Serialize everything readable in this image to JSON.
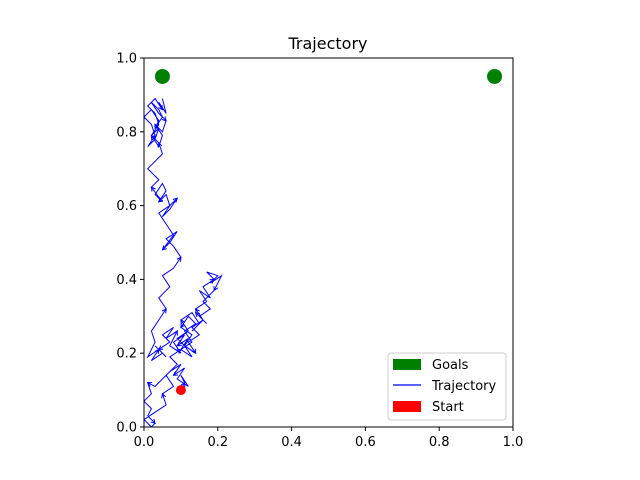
{
  "chart_data": {
    "type": "line",
    "title": "Trajectory",
    "xlabel": "",
    "ylabel": "",
    "xlim": [
      0.0,
      1.0
    ],
    "ylim": [
      0.0,
      1.0
    ],
    "xticks": [
      "0.0",
      "0.2",
      "0.4",
      "0.6",
      "0.8",
      "1.0"
    ],
    "yticks": [
      "0.0",
      "0.2",
      "0.4",
      "0.6",
      "0.8",
      "1.0"
    ],
    "grid": false,
    "legend": {
      "placement": "lower-right",
      "entries": [
        {
          "label": "Goals",
          "color": "#008000",
          "kind": "patch"
        },
        {
          "label": "Trajectory",
          "color": "#0000ff",
          "kind": "line"
        },
        {
          "label": "Start",
          "color": "#ff0000",
          "kind": "patch"
        }
      ]
    },
    "goals": [
      {
        "x": 0.05,
        "y": 0.95
      },
      {
        "x": 0.95,
        "y": 0.95
      }
    ],
    "start": {
      "x": 0.1,
      "y": 0.1
    },
    "series": [
      {
        "name": "Trajectory",
        "color": "#0000ff",
        "x": [
          0.1,
          0.11,
          0.1,
          0.12,
          0.09,
          0.11,
          0.08,
          0.1,
          0.07,
          0.05,
          0.03,
          0.01,
          0.02,
          0.0,
          0.02,
          0.01,
          0.03,
          0.02,
          0.0,
          0.03,
          0.06,
          0.05,
          0.08,
          0.06,
          0.09,
          0.07,
          0.1,
          0.13,
          0.11,
          0.14,
          0.12,
          0.1,
          0.13,
          0.11,
          0.09,
          0.12,
          0.1,
          0.13,
          0.15,
          0.13,
          0.16,
          0.14,
          0.17,
          0.15,
          0.18,
          0.16,
          0.19,
          0.17,
          0.2,
          0.18,
          0.21,
          0.19,
          0.16,
          0.18,
          0.15,
          0.17,
          0.14,
          0.16,
          0.13,
          0.15,
          0.12,
          0.14,
          0.11,
          0.13,
          0.1,
          0.12,
          0.09,
          0.11,
          0.08,
          0.1,
          0.07,
          0.09,
          0.06,
          0.08,
          0.05,
          0.07,
          0.04,
          0.06,
          0.03,
          0.05,
          0.02,
          0.04,
          0.01,
          0.03,
          0.02,
          0.04,
          0.06,
          0.04,
          0.07,
          0.05,
          0.08,
          0.1,
          0.08,
          0.06,
          0.09,
          0.07,
          0.05,
          0.08,
          0.06,
          0.04,
          0.07,
          0.09,
          0.07,
          0.05,
          0.07,
          0.06,
          0.04,
          0.06,
          0.05,
          0.03,
          0.05,
          0.02,
          0.04,
          0.01,
          0.03,
          0.05,
          0.04,
          0.02,
          0.04,
          0.03,
          0.01,
          0.03,
          0.02,
          0.0,
          0.02,
          0.04,
          0.03,
          0.05,
          0.04,
          0.02,
          0.04,
          0.06,
          0.05,
          0.03,
          0.05,
          0.04,
          0.02,
          0.04,
          0.03,
          0.01,
          0.03,
          0.05,
          0.04,
          0.06,
          0.05
        ],
        "y": [
          0.1,
          0.12,
          0.14,
          0.11,
          0.13,
          0.16,
          0.14,
          0.17,
          0.15,
          0.13,
          0.11,
          0.12,
          0.09,
          0.07,
          0.05,
          0.03,
          0.01,
          0.0,
          0.02,
          0.04,
          0.06,
          0.09,
          0.11,
          0.14,
          0.17,
          0.19,
          0.21,
          0.23,
          0.26,
          0.28,
          0.3,
          0.27,
          0.25,
          0.22,
          0.24,
          0.26,
          0.29,
          0.31,
          0.28,
          0.26,
          0.29,
          0.32,
          0.34,
          0.37,
          0.35,
          0.38,
          0.4,
          0.42,
          0.41,
          0.39,
          0.41,
          0.37,
          0.34,
          0.32,
          0.3,
          0.28,
          0.31,
          0.29,
          0.27,
          0.25,
          0.23,
          0.2,
          0.22,
          0.19,
          0.21,
          0.24,
          0.22,
          0.25,
          0.23,
          0.2,
          0.22,
          0.26,
          0.24,
          0.27,
          0.25,
          0.23,
          0.21,
          0.19,
          0.22,
          0.2,
          0.18,
          0.21,
          0.19,
          0.23,
          0.26,
          0.29,
          0.32,
          0.35,
          0.38,
          0.41,
          0.43,
          0.46,
          0.49,
          0.51,
          0.53,
          0.5,
          0.48,
          0.52,
          0.55,
          0.58,
          0.6,
          0.62,
          0.59,
          0.57,
          0.6,
          0.63,
          0.61,
          0.64,
          0.66,
          0.63,
          0.61,
          0.65,
          0.67,
          0.7,
          0.72,
          0.74,
          0.77,
          0.79,
          0.81,
          0.78,
          0.76,
          0.79,
          0.82,
          0.84,
          0.86,
          0.83,
          0.81,
          0.84,
          0.86,
          0.88,
          0.85,
          0.83,
          0.8,
          0.82,
          0.79,
          0.76,
          0.79,
          0.82,
          0.85,
          0.87,
          0.89,
          0.86,
          0.88,
          0.85,
          0.89
        ]
      }
    ]
  }
}
